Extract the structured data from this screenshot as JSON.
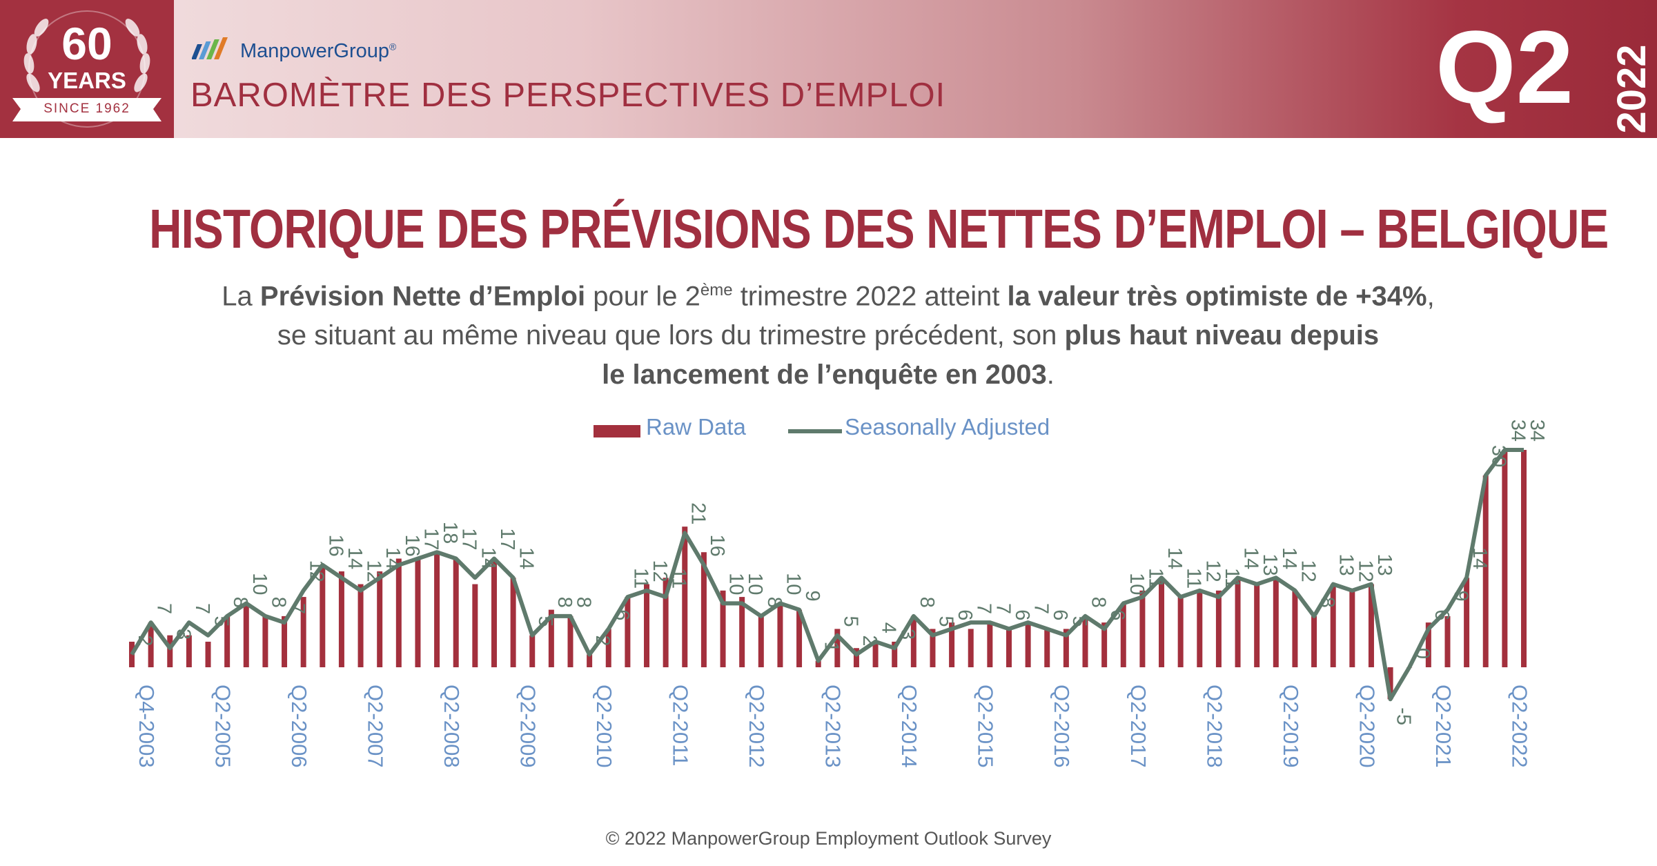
{
  "header": {
    "badge": {
      "number": "60",
      "years_label": "YEARS",
      "since_label": "SINCE 1962"
    },
    "brand_name": "ManpowerGroup",
    "brand_mark": "®",
    "barometer_title": "BAROMÈTRE DES PERSPECTIVES D’EMPLOI",
    "quarter": "Q2",
    "year": "2022"
  },
  "title": "HISTORIQUE DES PRÉVISIONS DES NETTES D’EMPLOI – BELGIQUE",
  "subtitle": {
    "s1": "La ",
    "b1": "Prévision Nette d’Emploi",
    "s2": " pour le 2",
    "sup": "ème",
    "s3": " trimestre 2022 atteint ",
    "b2": "la valeur très optimiste de +34%",
    "s4": ",",
    "s5": "se situant au même niveau que lors du trimestre précédent, son ",
    "b3": "plus haut niveau depuis",
    "b4": "le lancement de l’enquête en 2003",
    "s6": "."
  },
  "footer": "© 2022 ManpowerGroup Employment Outlook Survey",
  "colors": {
    "raw": "#a3303d",
    "adjusted": "#5f7a6c",
    "axis_labels": "#6a92c6",
    "title": "#a02f40"
  },
  "chart_data": {
    "type": "bar",
    "legend": [
      "Raw Data",
      "Seasonally Adjusted"
    ],
    "legend_position": "top-center",
    "grid": false,
    "ylim": [
      -5,
      35
    ],
    "xtick_labels": [
      "Q4-2003",
      "Q2-2005",
      "Q2-2006",
      "Q2-2007",
      "Q2-2008",
      "Q2-2009",
      "Q2-2010",
      "Q2-2011",
      "Q2-2012",
      "Q2-2013",
      "Q2-2014",
      "Q2-2015",
      "Q2-2016",
      "Q2-2017",
      "Q2-2018",
      "Q2-2019",
      "Q2-2020",
      "Q2-2021",
      "Q2-2022"
    ],
    "xtick_indices": [
      0,
      4,
      8,
      12,
      16,
      20,
      24,
      28,
      32,
      36,
      40,
      44,
      48,
      52,
      56,
      60,
      64,
      68,
      72
    ],
    "series": [
      {
        "name": "Raw Data",
        "type": "bar",
        "values": [
          4,
          7,
          5,
          5,
          4,
          8,
          10,
          8,
          8,
          11,
          16,
          15,
          13,
          15,
          17,
          17,
          18,
          17,
          13,
          17,
          14,
          5,
          9,
          8,
          2,
          6,
          11,
          13,
          14,
          22,
          18,
          12,
          11,
          8,
          10,
          9,
          1,
          6,
          3,
          4,
          4,
          8,
          6,
          7,
          6,
          7,
          6,
          7,
          6,
          6,
          8,
          7,
          10,
          12,
          14,
          11,
          12,
          12,
          14,
          13,
          14,
          12,
          8,
          13,
          12,
          13,
          -5,
          0,
          7,
          8,
          14,
          30,
          34,
          34
        ]
      },
      {
        "name": "Seasonally Adjusted",
        "type": "line",
        "values": [
          2,
          7,
          3,
          7,
          5,
          8,
          10,
          8,
          7,
          12,
          16,
          14,
          12,
          14,
          16,
          17,
          18,
          17,
          14,
          17,
          14,
          5,
          8,
          8,
          2,
          6,
          11,
          12,
          11,
          21,
          16,
          10,
          10,
          8,
          10,
          9,
          1,
          5,
          2,
          4,
          3,
          8,
          5,
          6,
          7,
          7,
          6,
          7,
          6,
          5,
          8,
          6,
          10,
          11,
          14,
          11,
          12,
          11,
          14,
          13,
          14,
          12,
          8,
          13,
          12,
          13,
          -5,
          0,
          6,
          9,
          14,
          30,
          34,
          34
        ],
        "data_labels": [
          "2",
          "7",
          "3",
          "7",
          "5",
          "8",
          "10",
          "8",
          "7",
          "12",
          "16",
          "14",
          "12",
          "14",
          "16",
          "17",
          "18",
          "17",
          "14",
          "17",
          "14",
          "5",
          "8",
          "8",
          "2",
          "6",
          "11",
          "12",
          "11",
          "21",
          "16",
          "10",
          "10",
          "8",
          "10",
          "9",
          "1",
          "5",
          "2",
          "4",
          "3",
          "8",
          "5",
          "6",
          "7",
          "7",
          "6",
          "7",
          "6",
          "5",
          "8",
          "6",
          "10",
          "11",
          "14",
          "11",
          "12",
          "11",
          "14",
          "13",
          "14",
          "12",
          "8",
          "13",
          "12",
          "13",
          "-5",
          "0",
          "6",
          "9",
          "14",
          "30",
          "34",
          "34"
        ]
      }
    ]
  }
}
